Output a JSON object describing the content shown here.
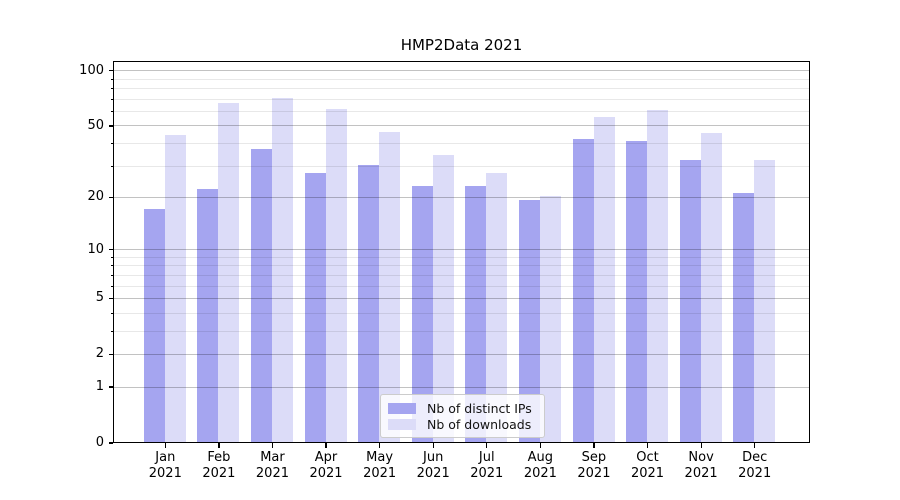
{
  "chart_data": {
    "type": "bar",
    "title": "HMP2Data 2021",
    "categories": [
      "Jan",
      "Feb",
      "Mar",
      "Apr",
      "May",
      "Jun",
      "Jul",
      "Aug",
      "Sep",
      "Oct",
      "Nov",
      "Dec"
    ],
    "category_year": "2021",
    "series": [
      {
        "name": "Nb of distinct IPs",
        "color": "#a5a5f0",
        "values": [
          17,
          22,
          37,
          27,
          30,
          23,
          23,
          19,
          42,
          41,
          32,
          21
        ]
      },
      {
        "name": "Nb of downloads",
        "color": "#dcdcf8",
        "values": [
          44,
          66,
          70,
          61,
          46,
          34,
          27,
          20,
          55,
          60,
          45,
          32
        ]
      }
    ],
    "yscale": "log1p",
    "ylim": [
      0,
      113
    ],
    "y_major_ticks": [
      0,
      1,
      2,
      5,
      10,
      20,
      50,
      100
    ],
    "y_minor_ticks": [
      3,
      4,
      6,
      7,
      8,
      9,
      30,
      40,
      60,
      70,
      80,
      90
    ],
    "grid": "horizontal",
    "legend_position": "lower center"
  },
  "colors": {
    "spine": "#000000",
    "grid_major": "rgba(0,0,0,0.24)",
    "grid_minor": "rgba(0,0,0,0.09)",
    "legend_border": "#cccccc"
  }
}
